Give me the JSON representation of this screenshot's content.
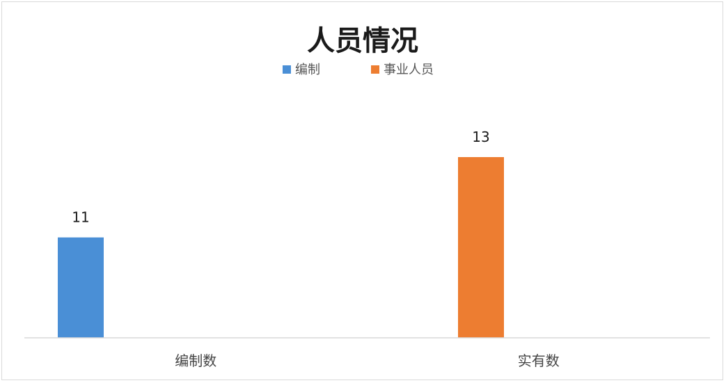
{
  "chart_data": {
    "type": "bar",
    "title": "人员情况",
    "categories": [
      "编制数",
      "实有数"
    ],
    "series": [
      {
        "name": "编制",
        "color": "#4a8fd6",
        "values": [
          11,
          null
        ]
      },
      {
        "name": "事业人员",
        "color": "#ed7d31",
        "values": [
          null,
          13
        ]
      }
    ],
    "data_labels": true,
    "legend_position": "top",
    "ylim": [
      8.5,
      13.8
    ],
    "grid": false,
    "xlabel": "",
    "ylabel": ""
  }
}
